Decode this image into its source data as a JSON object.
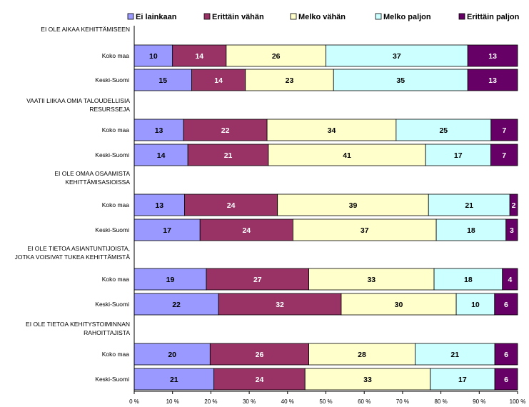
{
  "chart_data": {
    "type": "bar",
    "orientation": "horizontal",
    "stacked": "percent",
    "title": "",
    "xlabel": "",
    "ylabel": "",
    "xlim": [
      0,
      100
    ],
    "xticks": [
      "0 %",
      "10 %",
      "20 %",
      "30 %",
      "40 %",
      "50 %",
      "60 %",
      "70 %",
      "80 %",
      "90 %",
      "100 %"
    ],
    "legend_position": "top",
    "series": [
      {
        "name": "Ei lainkaan",
        "color": "#9999ff"
      },
      {
        "name": "Erittäin vähän",
        "color": "#993366"
      },
      {
        "name": "Melko vähän",
        "color": "#ffffcc"
      },
      {
        "name": "Melko paljon",
        "color": "#ccffff"
      },
      {
        "name": "Erittäin paljon",
        "color": "#660066"
      }
    ],
    "groups": [
      {
        "title_lines": [
          "EI OLE AIKAA KEHITTÄMISEEN"
        ],
        "rows": [
          {
            "label": "Koko maa",
            "values": [
              10,
              14,
              26,
              37,
              13
            ]
          },
          {
            "label": "Keski-Suomi",
            "values": [
              15,
              14,
              23,
              35,
              13
            ]
          }
        ]
      },
      {
        "title_lines": [
          "VAATII LIIKAA OMIA TALOUDELLISIA",
          "RESURSSEJA"
        ],
        "rows": [
          {
            "label": "Koko maa",
            "values": [
              13,
              22,
              34,
              25,
              7
            ]
          },
          {
            "label": "Keski-Suomi",
            "values": [
              14,
              21,
              41,
              17,
              7
            ]
          }
        ]
      },
      {
        "title_lines": [
          "EI OLE OMAA OSAAMISTA",
          "KEHITTÄMISASIOISSA"
        ],
        "rows": [
          {
            "label": "Koko maa",
            "values": [
              13,
              24,
              39,
              21,
              2
            ]
          },
          {
            "label": "Keski-Suomi",
            "values": [
              17,
              24,
              37,
              18,
              3
            ]
          }
        ]
      },
      {
        "title_lines": [
          "EI OLE TIETOA ASIANTUNTIJOISTA,",
          "JOTKA VOISIVAT TUKEA KEHITTÄMISTÄ"
        ],
        "rows": [
          {
            "label": "Koko maa",
            "values": [
              19,
              27,
              33,
              18,
              4
            ]
          },
          {
            "label": "Keski-Suomi",
            "values": [
              22,
              32,
              30,
              10,
              6
            ]
          }
        ]
      },
      {
        "title_lines": [
          "EI OLE TIETOA KEHITYSTOIMINNAN",
          "RAHOITTAJISTA"
        ],
        "rows": [
          {
            "label": "Koko maa",
            "values": [
              20,
              26,
              28,
              21,
              6
            ]
          },
          {
            "label": "Keski-Suomi",
            "values": [
              21,
              24,
              33,
              17,
              6
            ]
          }
        ]
      }
    ]
  }
}
